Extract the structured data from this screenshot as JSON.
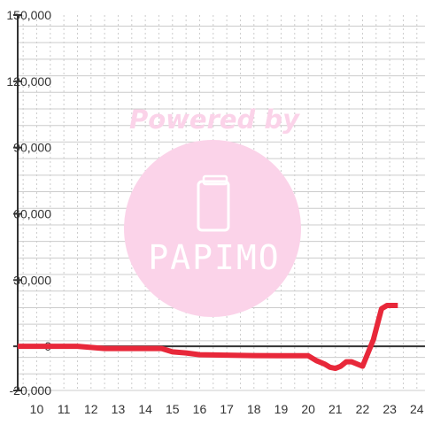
{
  "watermark": {
    "caption": "Powered by",
    "logo": "PAPIMO",
    "icon": "phone-icon",
    "color": "#fbd3e9"
  },
  "chart_data": {
    "type": "line",
    "title": "",
    "xlabel": "",
    "ylabel": "",
    "xlim": [
      9.3,
      24.3
    ],
    "ylim": [
      -20000,
      150000
    ],
    "x_ticks": [
      10,
      11,
      12,
      13,
      14,
      15,
      16,
      17,
      18,
      19,
      20,
      21,
      22,
      23,
      24
    ],
    "x_tick_labels": [
      "10",
      "11",
      "12",
      "13",
      "14",
      "15",
      "16",
      "17",
      "18",
      "19",
      "20",
      "21",
      "22",
      "23",
      "24"
    ],
    "y_ticks": [
      -20000,
      0,
      30000,
      60000,
      90000,
      120000,
      150000
    ],
    "y_tick_labels": [
      "-20,000",
      "0",
      "30,000",
      "60,000",
      "90,000",
      "120,000",
      "150,000"
    ],
    "grid": true,
    "legend": "none",
    "colors": {
      "line": "#e8283a",
      "axis": "#333333",
      "grid": "#cccccc"
    },
    "series": [
      {
        "x": [
          9.3,
          11.5,
          12.0,
          12.5,
          13.0,
          14.0,
          14.6,
          15.0,
          15.5,
          16.0,
          17.0,
          18.0,
          19.0,
          20.0,
          20.3,
          20.6,
          20.8,
          21.0,
          21.2,
          21.4,
          21.6,
          21.8,
          22.0,
          22.4,
          22.7,
          22.9,
          23.3
        ],
        "y": [
          0,
          0,
          -500,
          -1000,
          -1000,
          -1000,
          -1000,
          -2500,
          -3000,
          -3800,
          -4000,
          -4200,
          -4300,
          -4300,
          -6500,
          -8000,
          -9500,
          -10000,
          -9000,
          -7000,
          -7000,
          -8000,
          -9000,
          3000,
          17000,
          18500,
          18500
        ]
      }
    ]
  }
}
